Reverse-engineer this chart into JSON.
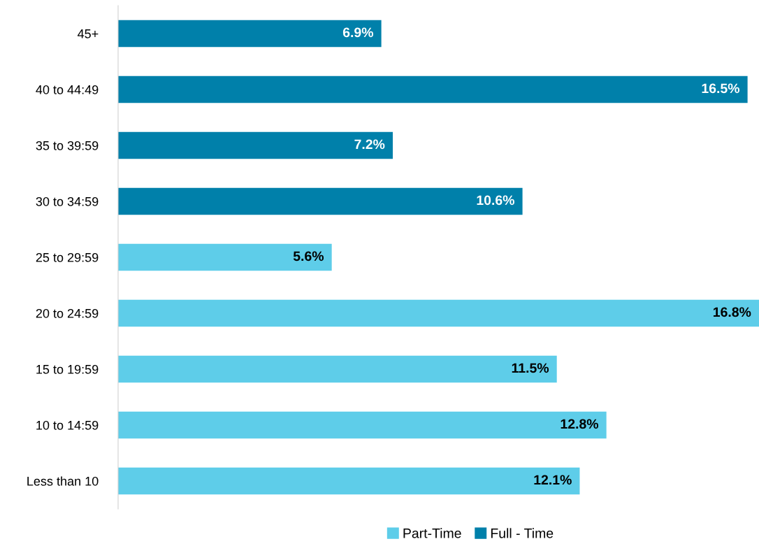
{
  "chart_data": {
    "type": "bar",
    "orientation": "horizontal",
    "categories": [
      "45+",
      "40 to 44:49",
      "35 to 39:59",
      "30 to 34:59",
      "25 to 29:59",
      "20 to 24:59",
      "15 to 19:59",
      "10 to 14:59",
      "Less than 10"
    ],
    "series": [
      {
        "name": "Part-Time",
        "color": "#5ecde9",
        "values": [
          null,
          null,
          null,
          null,
          5.6,
          16.8,
          11.5,
          12.8,
          12.1
        ],
        "value_labels": [
          null,
          null,
          null,
          null,
          "5.6%",
          "16.8%",
          "11.5%",
          "12.8%",
          "12.1%"
        ]
      },
      {
        "name": "Full - Time",
        "color": "#0080aa",
        "values": [
          6.9,
          16.5,
          7.2,
          10.6,
          null,
          null,
          null,
          null,
          null
        ],
        "value_labels": [
          "6.9%",
          "16.5%",
          "7.2%",
          "10.6%",
          null,
          null,
          null,
          null,
          null
        ]
      }
    ],
    "tick_labels": "y",
    "grid": false,
    "legend": "bottom"
  }
}
